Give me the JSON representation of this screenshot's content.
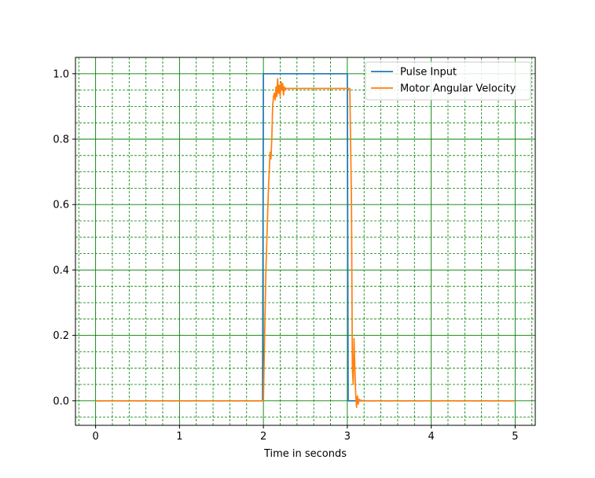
{
  "chart_data": {
    "type": "line",
    "title": "",
    "xlabel": "Time in seconds",
    "ylabel": "",
    "xlim": [
      -0.24,
      5.24
    ],
    "ylim": [
      -0.075,
      1.05
    ],
    "x_ticks": [
      0,
      1,
      2,
      3,
      4,
      5
    ],
    "y_ticks": [
      0.0,
      0.2,
      0.4,
      0.6,
      0.8,
      1.0
    ],
    "x_tick_labels": [
      "0",
      "1",
      "2",
      "3",
      "4",
      "5"
    ],
    "y_tick_labels": [
      "0.0",
      "0.2",
      "0.4",
      "0.6",
      "0.8",
      "1.0"
    ],
    "grid": true,
    "grid_major_color": "#008000",
    "grid_minor_style": "dashed",
    "legend_position": "top-right",
    "series": [
      {
        "name": "Pulse Input",
        "color": "#1f77b4",
        "x": [
          0,
          1.99,
          2.0,
          3.0,
          3.01,
          5.0
        ],
        "y": [
          0,
          0,
          1,
          1,
          0,
          0
        ]
      },
      {
        "name": "Motor Angular Velocity",
        "color": "#ff7f0e",
        "x": [
          0,
          1.99,
          2.0,
          2.03,
          2.06,
          2.08,
          2.09,
          2.1,
          2.11,
          2.12,
          2.13,
          2.14,
          2.15,
          2.16,
          2.17,
          2.18,
          2.19,
          2.2,
          2.21,
          2.22,
          2.23,
          2.24,
          2.25,
          2.26,
          2.27,
          2.28,
          2.29,
          2.3,
          2.32,
          2.5,
          2.8,
          3.0,
          3.03,
          3.05,
          3.06,
          3.07,
          3.08,
          3.09,
          3.1,
          3.11,
          3.12,
          3.13,
          3.14,
          3.15,
          3.16,
          3.18,
          3.3,
          5.0
        ],
        "y": [
          0,
          0,
          0,
          0.4,
          0.65,
          0.76,
          0.74,
          0.8,
          0.9,
          0.93,
          0.94,
          0.92,
          0.96,
          0.93,
          0.985,
          0.94,
          0.965,
          0.93,
          0.975,
          0.95,
          0.97,
          0.935,
          0.96,
          0.95,
          0.955,
          0.955,
          0.955,
          0.955,
          0.955,
          0.955,
          0.955,
          0.955,
          0.955,
          0.6,
          0.1,
          0.05,
          0.19,
          0.1,
          0.02,
          -0.02,
          0.015,
          -0.01,
          0.005,
          0.0,
          0.002,
          0,
          0,
          0
        ]
      }
    ]
  }
}
